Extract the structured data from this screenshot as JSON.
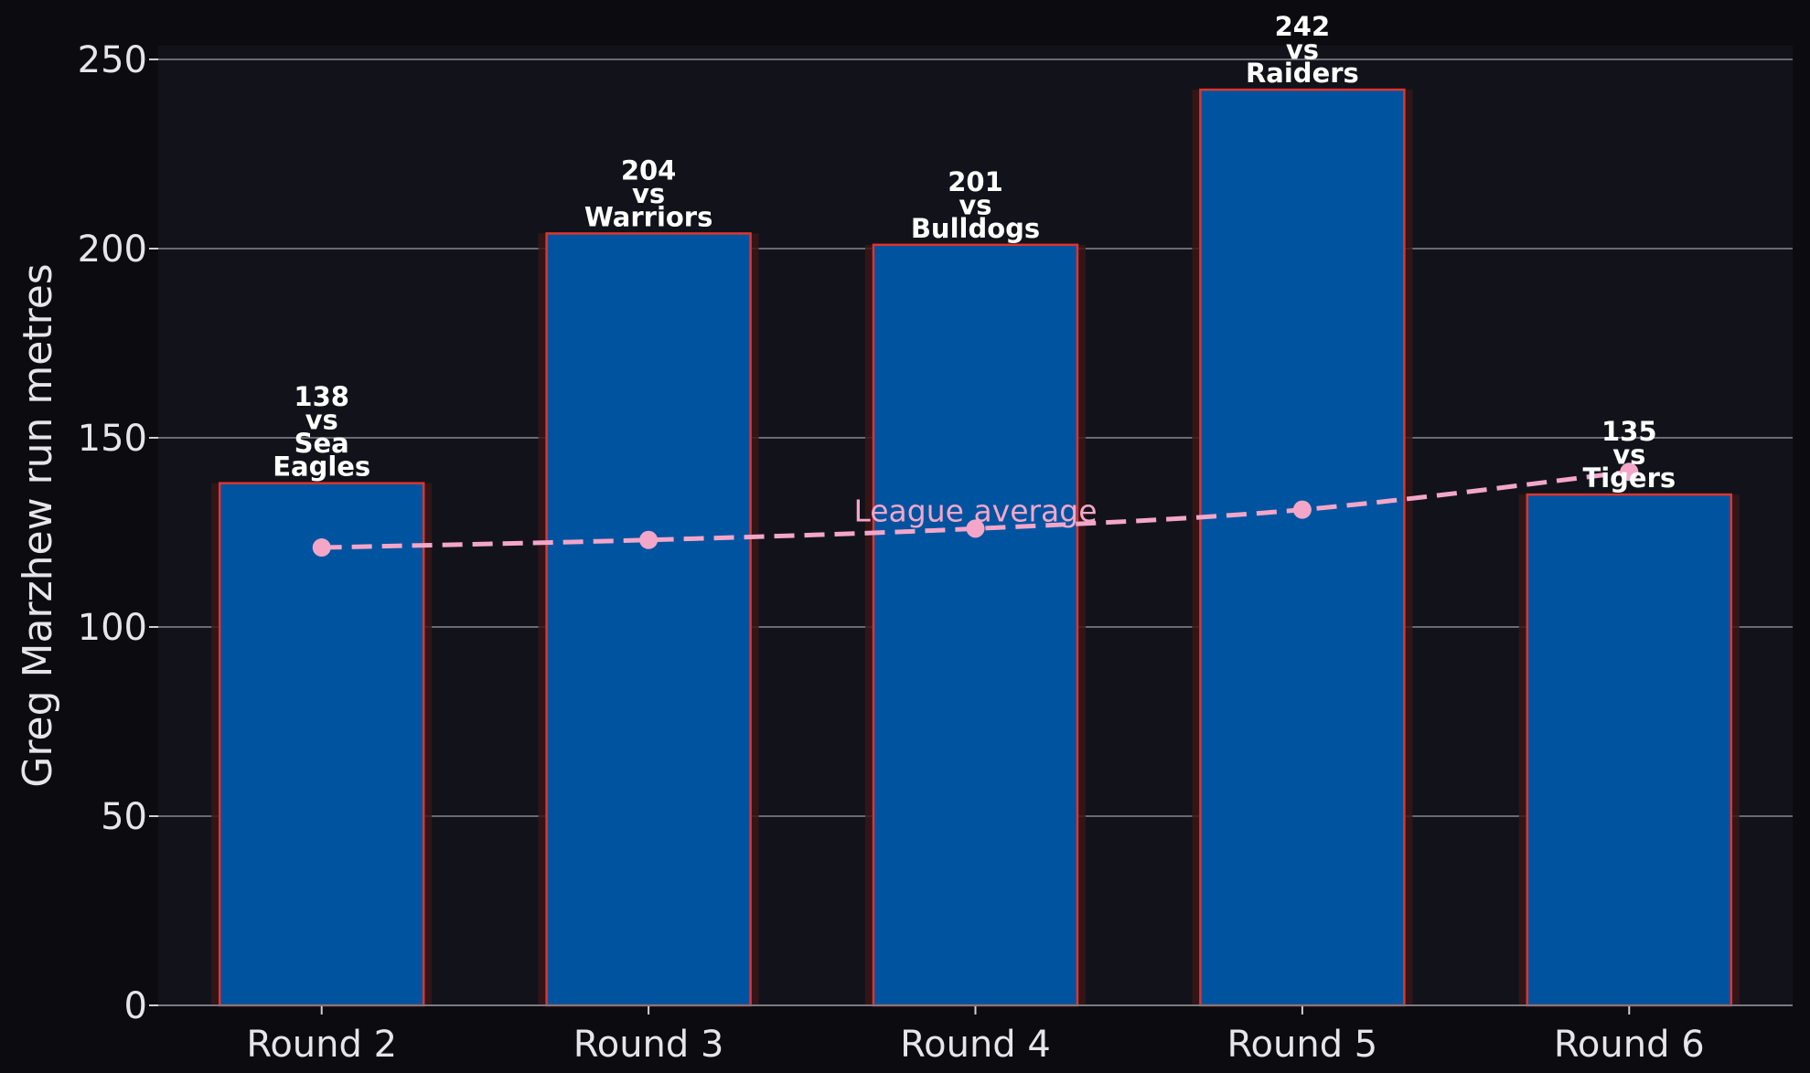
{
  "chart_data": {
    "type": "bar",
    "categories": [
      "Round 2",
      "Round 3",
      "Round 4",
      "Round 5",
      "Round 6"
    ],
    "series": [
      {
        "values": [
          138,
          204,
          201,
          242,
          135
        ],
        "color": "#00539f"
      },
      {
        "name": "League average",
        "type": "line",
        "values": [
          121,
          123,
          126,
          131,
          141
        ],
        "color": "#f4a6c9"
      }
    ],
    "bar_labels": [
      [
        "138",
        "vs",
        "Sea",
        "Eagles"
      ],
      [
        "204",
        "vs",
        "Warriors"
      ],
      [
        "201",
        "vs",
        "Bulldogs"
      ],
      [
        "242",
        "vs",
        "Raiders"
      ],
      [
        "135",
        "vs",
        "Tigers"
      ]
    ],
    "ylabel": "Greg Marzhew run metres",
    "xlabel": "",
    "ylim": [
      0,
      254
    ],
    "yticks": [
      0,
      50,
      100,
      150,
      200,
      250
    ],
    "grid": "horizontal",
    "colors": {
      "background": "#0c0c10",
      "plot_area": "#12131a",
      "bar_edge": "#e0342e",
      "grid": "#6a6a72"
    }
  }
}
